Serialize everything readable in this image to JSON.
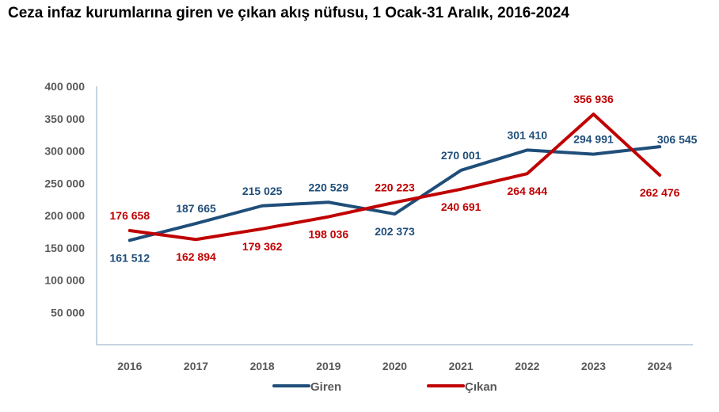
{
  "chart_data": {
    "type": "line",
    "title": "Ceza infaz kurumlarına giren ve çıkan akış nüfusu, 1 Ocak-31 Aralık, 2016-2024",
    "categories": [
      "2016",
      "2017",
      "2018",
      "2019",
      "2020",
      "2021",
      "2022",
      "2023",
      "2024"
    ],
    "y_ticks": [
      "400 000",
      "350 000",
      "300 000",
      "250 000",
      "200 000",
      "150 000",
      "100 000",
      "50 000"
    ],
    "ylim": [
      0,
      400000
    ],
    "grid": false,
    "legend_position": "bottom",
    "series": [
      {
        "name": "Giren",
        "color": "#1F4E79",
        "values": [
          161512,
          187665,
          215025,
          220529,
          202373,
          270001,
          301410,
          294991,
          306545
        ],
        "labels": [
          "161 512",
          "187 665",
          "215 025",
          "220 529",
          "202 373",
          "270 001",
          "301 410",
          "294 991",
          "306 545"
        ]
      },
      {
        "name": "Çıkan",
        "color": "#C00000",
        "values": [
          176658,
          162894,
          179362,
          198036,
          220223,
          240691,
          264844,
          356936,
          262476
        ],
        "labels": [
          "176 658",
          "162 894",
          "179 362",
          "198 036",
          "220 223",
          "240 691",
          "264 844",
          "356 936",
          "262 476"
        ]
      }
    ]
  }
}
